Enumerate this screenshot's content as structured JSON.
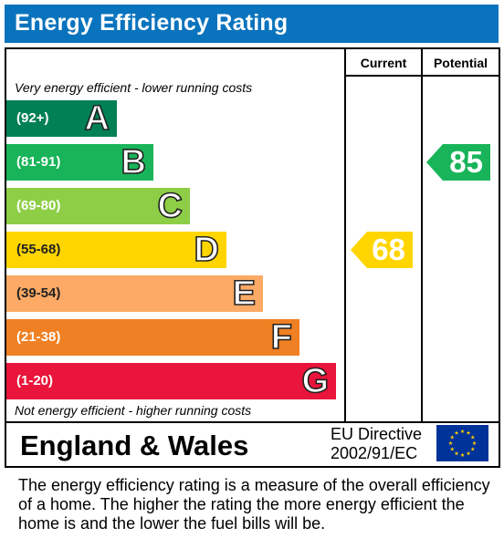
{
  "title": "Energy Efficiency Rating",
  "columns": {
    "current": "Current",
    "potential": "Potential"
  },
  "notes": {
    "top": "Very energy efficient - lower running costs",
    "bottom": "Not energy efficient - higher running costs"
  },
  "chart_data": {
    "type": "bar",
    "title": "Energy Efficiency Rating",
    "categories": [
      "A",
      "B",
      "C",
      "D",
      "E",
      "F",
      "G"
    ],
    "bands": [
      {
        "letter": "A",
        "range": "(92+)",
        "color": "#008054"
      },
      {
        "letter": "B",
        "range": "(81-91)",
        "color": "#19b459"
      },
      {
        "letter": "C",
        "range": "(69-80)",
        "color": "#8dce46"
      },
      {
        "letter": "D",
        "range": "(55-68)",
        "color": "#ffd500"
      },
      {
        "letter": "E",
        "range": "(39-54)",
        "color": "#fcaa65"
      },
      {
        "letter": "F",
        "range": "(21-38)",
        "color": "#ef8023"
      },
      {
        "letter": "G",
        "range": "(1-20)",
        "color": "#e9153b"
      }
    ],
    "current": {
      "value": 68,
      "band": "D",
      "color": "#ffd500"
    },
    "potential": {
      "value": 85,
      "band": "B",
      "color": "#19b459"
    }
  },
  "footer": {
    "region": "England & Wales",
    "directive_line1": "EU Directive",
    "directive_line2": "2002/91/EC",
    "flag_colors": {
      "background": "#003399",
      "stars": "#ffcc00"
    }
  },
  "description": "The energy efficiency rating is a measure of the overall efficiency of a home.  The higher the rating the more energy efficient the home is and the lower the fuel bills will be."
}
